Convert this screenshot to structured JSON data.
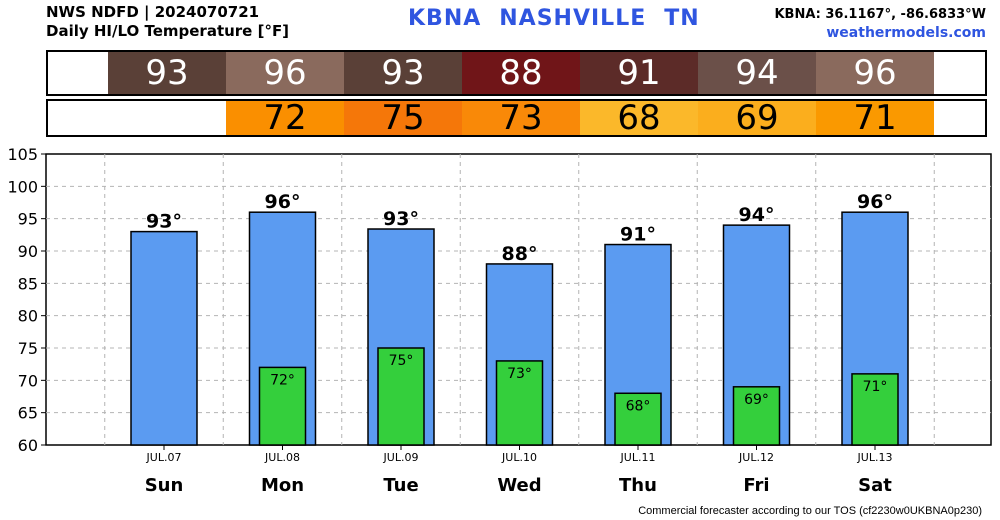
{
  "header": {
    "source": "NWS NDFD | 2024070721",
    "product": "Daily HI/LO Temperature [°F]",
    "station": "KBNA",
    "city": "NASHVILLE",
    "state": "TN",
    "coords": "KBNA: 36.1167°, -86.6833°W",
    "site": "weathermodels.com"
  },
  "strips": {
    "hi": [
      {
        "text": "93",
        "color": "#5a4037"
      },
      {
        "text": "96",
        "color": "#8a6a5d"
      },
      {
        "text": "93",
        "color": "#5a4037"
      },
      {
        "text": "88",
        "color": "#701518"
      },
      {
        "text": "91",
        "color": "#5c2b28"
      },
      {
        "text": "94",
        "color": "#6b5049"
      },
      {
        "text": "96",
        "color": "#8a6a5d"
      }
    ],
    "lo": [
      {
        "text": "",
        "color": "#ffffff"
      },
      {
        "text": "72",
        "color": "#fa8f00"
      },
      {
        "text": "75",
        "color": "#f57709"
      },
      {
        "text": "73",
        "color": "#f98908"
      },
      {
        "text": "68",
        "color": "#fbb82a"
      },
      {
        "text": "69",
        "color": "#fbae1d"
      },
      {
        "text": "71",
        "color": "#fa9900"
      }
    ]
  },
  "chart_data": {
    "type": "bar",
    "categories": [
      "JUL.07",
      "JUL.08",
      "JUL.09",
      "JUL.10",
      "JUL.11",
      "JUL.12",
      "JUL.13"
    ],
    "days": [
      "Sun",
      "Mon",
      "Tue",
      "Wed",
      "Thu",
      "Fri",
      "Sat"
    ],
    "series": [
      {
        "name": "HI",
        "values": [
          93,
          96,
          93.4,
          88,
          91,
          94,
          96
        ],
        "labels": [
          "93°",
          "96°",
          "93°",
          "88°",
          "91°",
          "94°",
          "96°"
        ],
        "color": "#5b9bf1"
      },
      {
        "name": "LO",
        "values": [
          null,
          72,
          75,
          73,
          68,
          69,
          71
        ],
        "labels": [
          "",
          "72°",
          "75°",
          "73°",
          "68°",
          "69°",
          "71°"
        ],
        "color": "#34cf3c"
      }
    ],
    "ylim": [
      60,
      105
    ],
    "yticks": [
      "60",
      "65",
      "70",
      "75",
      "80",
      "85",
      "90",
      "95",
      "100",
      "105"
    ],
    "grid": true
  },
  "footer": "Commercial forecaster according to our TOS (cf2230w0UKBNA0p230)"
}
